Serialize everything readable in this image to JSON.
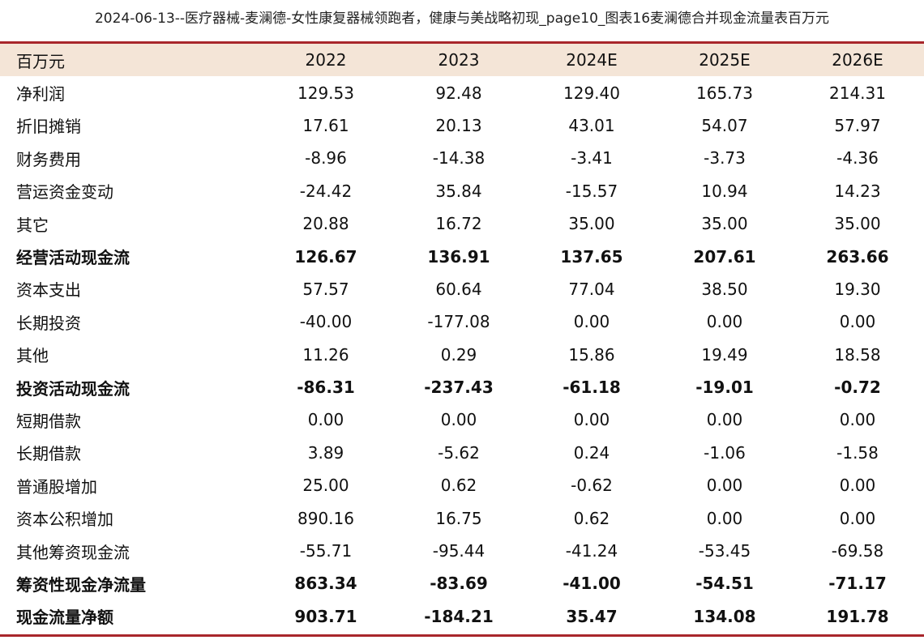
{
  "title": "2024-06-13--医疗器械-麦澜德-女性康复器械领跑者，健康与美战略初现_page10_图表16麦澜德合并现金流量表百万元",
  "table": {
    "header": [
      "百万元",
      "2022",
      "2023",
      "2024E",
      "2025E",
      "2026E"
    ],
    "rows": [
      {
        "label": "净利润",
        "values": [
          "129.53",
          "92.48",
          "129.40",
          "165.73",
          "214.31"
        ],
        "bold": false
      },
      {
        "label": "折旧摊销",
        "values": [
          "17.61",
          "20.13",
          "43.01",
          "54.07",
          "57.97"
        ],
        "bold": false
      },
      {
        "label": "财务费用",
        "values": [
          "-8.96",
          "-14.38",
          "-3.41",
          "-3.73",
          "-4.36"
        ],
        "bold": false
      },
      {
        "label": "营运资金变动",
        "values": [
          "-24.42",
          "35.84",
          "-15.57",
          "10.94",
          "14.23"
        ],
        "bold": false
      },
      {
        "label": "其它",
        "values": [
          "20.88",
          "16.72",
          "35.00",
          "35.00",
          "35.00"
        ],
        "bold": false
      },
      {
        "label": "经营活动现金流",
        "values": [
          "126.67",
          "136.91",
          "137.65",
          "207.61",
          "263.66"
        ],
        "bold": true
      },
      {
        "label": "资本支出",
        "values": [
          "57.57",
          "60.64",
          "77.04",
          "38.50",
          "19.30"
        ],
        "bold": false
      },
      {
        "label": "长期投资",
        "values": [
          "-40.00",
          "-177.08",
          "0.00",
          "0.00",
          "0.00"
        ],
        "bold": false
      },
      {
        "label": "其他",
        "values": [
          "11.26",
          "0.29",
          "15.86",
          "19.49",
          "18.58"
        ],
        "bold": false
      },
      {
        "label": "投资活动现金流",
        "values": [
          "-86.31",
          "-237.43",
          "-61.18",
          "-19.01",
          "-0.72"
        ],
        "bold": true
      },
      {
        "label": "短期借款",
        "values": [
          "0.00",
          "0.00",
          "0.00",
          "0.00",
          "0.00"
        ],
        "bold": false
      },
      {
        "label": "长期借款",
        "values": [
          "3.89",
          "-5.62",
          "0.24",
          "-1.06",
          "-1.58"
        ],
        "bold": false
      },
      {
        "label": "普通股增加",
        "values": [
          "25.00",
          "0.62",
          "-0.62",
          "0.00",
          "0.00"
        ],
        "bold": false
      },
      {
        "label": "资本公积增加",
        "values": [
          "890.16",
          "16.75",
          "0.62",
          "0.00",
          "0.00"
        ],
        "bold": false
      },
      {
        "label": "其他筹资现金流",
        "values": [
          "-55.71",
          "-95.44",
          "-41.24",
          "-53.45",
          "-69.58"
        ],
        "bold": false
      },
      {
        "label": "筹资性现金净流量",
        "values": [
          "863.34",
          "-83.69",
          "-41.00",
          "-54.51",
          "-71.17"
        ],
        "bold": true
      },
      {
        "label": "现金流量净额",
        "values": [
          "903.71",
          "-184.21",
          "35.47",
          "134.08",
          "191.78"
        ],
        "bold": true
      }
    ]
  },
  "colors": {
    "rule": "#a8262b",
    "header_bg": "#f4e5d7"
  }
}
